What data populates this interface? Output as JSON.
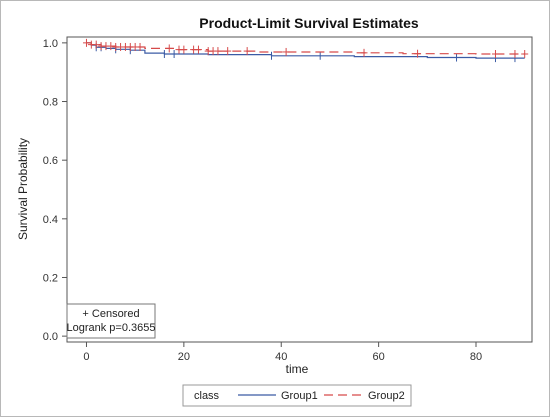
{
  "chart_data": {
    "type": "line",
    "title": "Product-Limit Survival Estimates",
    "xlabel": "time",
    "ylabel": "Survival Probability",
    "xlim": [
      -4,
      91.5
    ],
    "ylim": [
      -0.02,
      1.02
    ],
    "xticks": [
      0,
      20,
      40,
      60,
      80
    ],
    "yticks": [
      0.0,
      0.2,
      0.4,
      0.6,
      0.8,
      1.0
    ],
    "ytick_labels": [
      "0.0",
      "0.2",
      "0.4",
      "0.6",
      "0.8",
      "1.0"
    ],
    "grid": false,
    "inset_legend": {
      "position": "bottom-left",
      "censored_label": "+ Censored",
      "stat_label": "Logrank p=0.3655"
    },
    "legend": {
      "position": "bottom",
      "title": "class"
    },
    "series": [
      {
        "name": "Group1",
        "color": "#3b5ba5",
        "dash": "solid",
        "steps": [
          [
            0,
            1.0
          ],
          [
            1,
            0.992
          ],
          [
            2,
            0.985
          ],
          [
            4,
            0.981
          ],
          [
            6,
            0.978
          ],
          [
            9,
            0.975
          ],
          [
            12,
            0.965
          ],
          [
            16,
            0.962
          ],
          [
            25,
            0.96
          ],
          [
            38,
            0.956
          ],
          [
            55,
            0.953
          ],
          [
            70,
            0.95
          ],
          [
            80,
            0.948
          ],
          [
            90,
            0.948
          ]
        ],
        "censored": [
          2,
          3,
          6,
          9,
          16,
          18,
          38,
          48,
          76,
          84,
          88
        ]
      },
      {
        "name": "Group2",
        "color": "#d64a4a",
        "dash": "dashed",
        "steps": [
          [
            0,
            1.0
          ],
          [
            1,
            0.994
          ],
          [
            3,
            0.989
          ],
          [
            6,
            0.986
          ],
          [
            12,
            0.981
          ],
          [
            18,
            0.977
          ],
          [
            25,
            0.972
          ],
          [
            35,
            0.969
          ],
          [
            55,
            0.966
          ],
          [
            65,
            0.963
          ],
          [
            80,
            0.962
          ],
          [
            90,
            0.962
          ]
        ],
        "censored": [
          0,
          1,
          2,
          3,
          4,
          5,
          6,
          7,
          8,
          9,
          10,
          11,
          17,
          19,
          20,
          22,
          23,
          25,
          26,
          27,
          29,
          33,
          41,
          57,
          68,
          84,
          88,
          90
        ]
      }
    ]
  }
}
